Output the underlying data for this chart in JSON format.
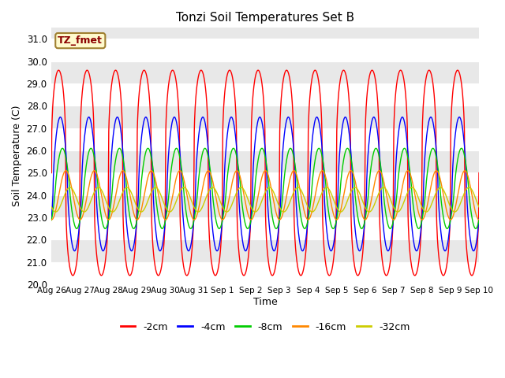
{
  "title": "Tonzi Soil Temperatures Set B",
  "xlabel": "Time",
  "ylabel": "Soil Temperature (C)",
  "ylim": [
    20.0,
    31.5
  ],
  "series": [
    {
      "label": "-2cm",
      "color": "#ff0000",
      "amplitude": 4.6,
      "phase": 0.0,
      "mean": 25.0,
      "sharpness": 3.0
    },
    {
      "label": "-4cm",
      "color": "#0000ff",
      "amplitude": 3.0,
      "phase": 0.38,
      "mean": 24.5,
      "sharpness": 1.5
    },
    {
      "label": "-8cm",
      "color": "#00cc00",
      "amplitude": 1.8,
      "phase": 0.85,
      "mean": 24.3,
      "sharpness": 1.2
    },
    {
      "label": "-16cm",
      "color": "#ff8800",
      "amplitude": 1.1,
      "phase": 1.6,
      "mean": 24.0,
      "sharpness": 1.0
    },
    {
      "label": "-32cm",
      "color": "#cccc00",
      "amplitude": 0.55,
      "phase": 2.5,
      "mean": 23.8,
      "sharpness": 1.0
    }
  ],
  "legend_label": "TZ_fmet",
  "x_tick_labels": [
    "Aug 26",
    "Aug 27",
    "Aug 28",
    "Aug 29",
    "Aug 30",
    "Aug 31",
    "Sep 1",
    "Sep 2",
    "Sep 3",
    "Sep 4",
    "Sep 5",
    "Sep 6",
    "Sep 7",
    "Sep 8",
    "Sep 9",
    "Sep 10"
  ],
  "yticks": [
    20.0,
    21.0,
    22.0,
    23.0,
    24.0,
    25.0,
    26.0,
    27.0,
    28.0,
    29.0,
    30.0,
    31.0
  ],
  "stripe_colors": [
    "#ffffff",
    "#e8e8e8"
  ],
  "plot_bg": "#d8d8d8",
  "fig_bg": "#ffffff"
}
